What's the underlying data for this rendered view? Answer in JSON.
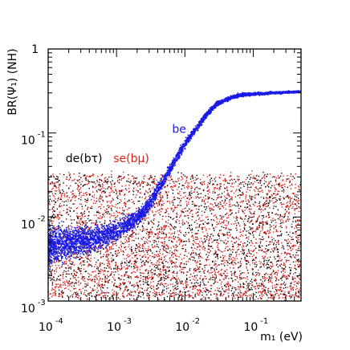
{
  "chart_data": {
    "type": "scatter",
    "title": "",
    "xlabel": "m₁ (eV)",
    "ylabel": "BR(Ψ₁) (NH)",
    "xscale": "log",
    "yscale": "log",
    "xlim": [
      0.0001,
      0.5
    ],
    "ylim": [
      0.001,
      1
    ],
    "grid": false,
    "x_ticks": [
      {
        "base": "10",
        "exp": "-4",
        "value": 0.0001
      },
      {
        "base": "10",
        "exp": "-3",
        "value": 0.001
      },
      {
        "base": "10",
        "exp": "-2",
        "value": 0.01
      },
      {
        "base": "10",
        "exp": "-1",
        "value": 0.1
      }
    ],
    "y_ticks": [
      {
        "base": "10",
        "exp": "-3",
        "value": 0.001
      },
      {
        "base": "10",
        "exp": "-2",
        "value": 0.01
      },
      {
        "base": "10",
        "exp": "-1",
        "value": 0.1
      },
      {
        "base": "",
        "exp": "",
        "value": 1,
        "text": "1"
      }
    ],
    "series": [
      {
        "name": "de(bτ)",
        "color": "#000000",
        "label_at": [
          0.00018,
          0.045
        ],
        "band_description_x": [
          0.0001,
          0.5
        ],
        "band_y_range": [
          0.0011,
          0.032
        ]
      },
      {
        "name": "se(bμ)",
        "color": "#e0201a",
        "label_at": [
          0.0009,
          0.045
        ],
        "band_description_x": [
          0.0001,
          0.5
        ],
        "band_y_range": [
          0.0011,
          0.032
        ]
      },
      {
        "name": "be",
        "color": "#1a1ae6",
        "label_at": [
          0.0065,
          0.1
        ],
        "curve": {
          "x": [
            0.0001,
            0.0002,
            0.0005,
            0.001,
            0.002,
            0.003,
            0.005,
            0.007,
            0.01,
            0.02,
            0.03,
            0.05,
            0.07,
            0.1,
            0.2,
            0.5
          ],
          "y": [
            0.0046,
            0.005,
            0.0055,
            0.0068,
            0.0096,
            0.014,
            0.028,
            0.045,
            0.075,
            0.16,
            0.225,
            0.27,
            0.285,
            0.29,
            0.3,
            0.31
          ]
        }
      }
    ]
  }
}
